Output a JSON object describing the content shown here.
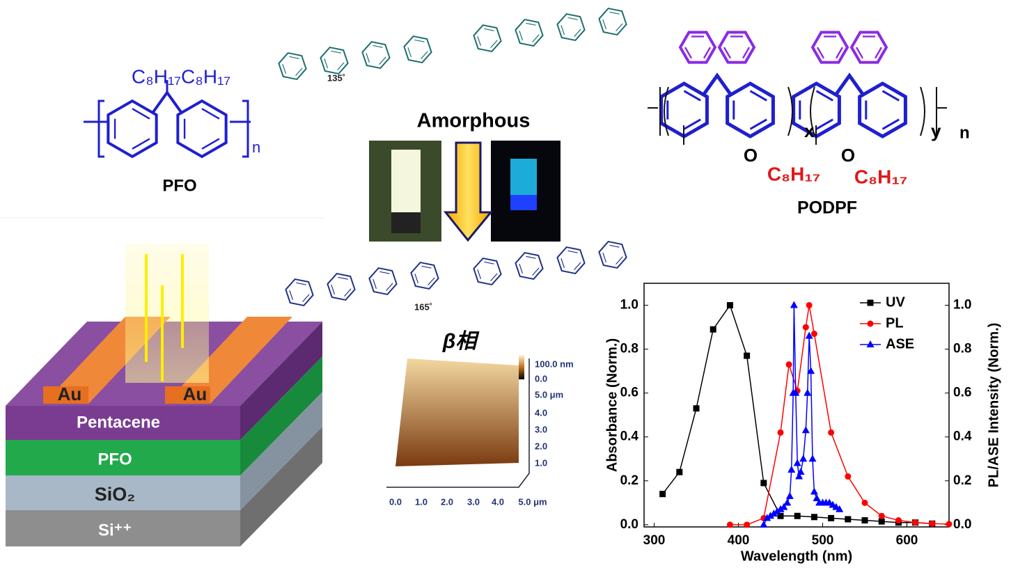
{
  "pfo": {
    "side_chain": "C₈H₁₇C₈H₁₇",
    "repeat": "n",
    "name": "PFO"
  },
  "conformation": {
    "top": "Amorphous",
    "angle_top": "135˚",
    "angle_bottom": "165˚",
    "phase": "β相"
  },
  "podpf": {
    "x": "x",
    "y": "y",
    "n": "n",
    "oxygen_1": "O",
    "oxygen_2": "O",
    "chain_1": "C₈H₁₇",
    "chain_2": "C₈H₁₇",
    "name": "PODPF"
  },
  "afm": {
    "scale_labels": [
      "100.0 nm",
      "0.0",
      "5.0 μm",
      "4.0",
      "3.0",
      "2.0",
      "1.0"
    ],
    "x_labels": [
      "0.0",
      "1.0",
      "2.0",
      "3.0",
      "4.0",
      "5.0 μm"
    ]
  },
  "device": {
    "electrode_1": "Au",
    "electrode_2": "Au",
    "layers": [
      "Pentacene",
      "PFO",
      "SiO₂",
      "Si⁺⁺"
    ]
  },
  "chart_data": {
    "type": "line",
    "x_label": "Wavelength (nm)",
    "y_label": "Absorbance (Norm.)",
    "y2_label": "PL/ASE Intensity (Norm.)",
    "xlim": [
      288,
      650
    ],
    "xticks": [
      300,
      400,
      500,
      600
    ],
    "ylim": [
      -0.01,
      1.1
    ],
    "yticks": [
      {
        "value": 0,
        "label": "0.0"
      },
      {
        "value": 0.2,
        "label": "0.2"
      },
      {
        "value": 0.4,
        "label": "0.4"
      },
      {
        "value": 0.6,
        "label": "0.6"
      },
      {
        "value": 0.8,
        "label": "0.8"
      },
      {
        "value": 1,
        "label": "1.0"
      }
    ],
    "y2lim": [
      -0.01,
      1.1
    ],
    "y2ticks": [
      {
        "value": 0,
        "label": "0.0"
      },
      {
        "value": 0.2,
        "label": "0.2"
      },
      {
        "value": 0.4,
        "label": "0.4"
      },
      {
        "value": 0.6,
        "label": "0.6"
      },
      {
        "value": 0.8,
        "label": "0.8"
      },
      {
        "value": 1,
        "label": "1.0"
      }
    ],
    "legend": "upper right",
    "series": [
      {
        "name": "UV",
        "color": "#000000",
        "marker": "square",
        "x": [
          310,
          330,
          350,
          370,
          390,
          410,
          430,
          450,
          470,
          490,
          510,
          530,
          550,
          570,
          590,
          610,
          630
        ],
        "values": [
          0.14,
          0.24,
          0.53,
          0.89,
          1.0,
          0.77,
          0.19,
          0.04,
          0.04,
          0.035,
          0.03,
          0.025,
          0.02,
          0.015,
          0.01,
          0.01,
          0.005
        ]
      },
      {
        "name": "PL",
        "color": "#ff0000",
        "marker": "circle",
        "axis": "y2",
        "x": [
          390,
          410,
          430,
          450,
          460,
          470,
          480,
          484,
          490,
          510,
          530,
          550,
          570,
          590,
          610,
          630,
          650
        ],
        "values": [
          0.0,
          0.0,
          0.03,
          0.42,
          0.73,
          0.61,
          0.9,
          1.0,
          0.87,
          0.42,
          0.22,
          0.1,
          0.04,
          0.02,
          0.01,
          0.005,
          0.003
        ]
      },
      {
        "name": "ASE",
        "color": "#0000ff",
        "marker": "triangle",
        "axis": "y2",
        "x": [
          430,
          434,
          438,
          442,
          446,
          450,
          454,
          458,
          461,
          463,
          465,
          466,
          468,
          470,
          472,
          474,
          477,
          480,
          482,
          484,
          486,
          488,
          490,
          493,
          496,
          500,
          504,
          508,
          512,
          516,
          520
        ],
        "values": [
          0.0,
          0.03,
          0.04,
          0.05,
          0.06,
          0.07,
          0.08,
          0.1,
          0.13,
          0.25,
          0.6,
          1.0,
          0.6,
          0.28,
          0.22,
          0.24,
          0.3,
          0.43,
          0.6,
          0.86,
          0.7,
          0.3,
          0.15,
          0.12,
          0.1,
          0.1,
          0.1,
          0.1,
          0.09,
          0.08,
          0.07
        ]
      }
    ]
  }
}
